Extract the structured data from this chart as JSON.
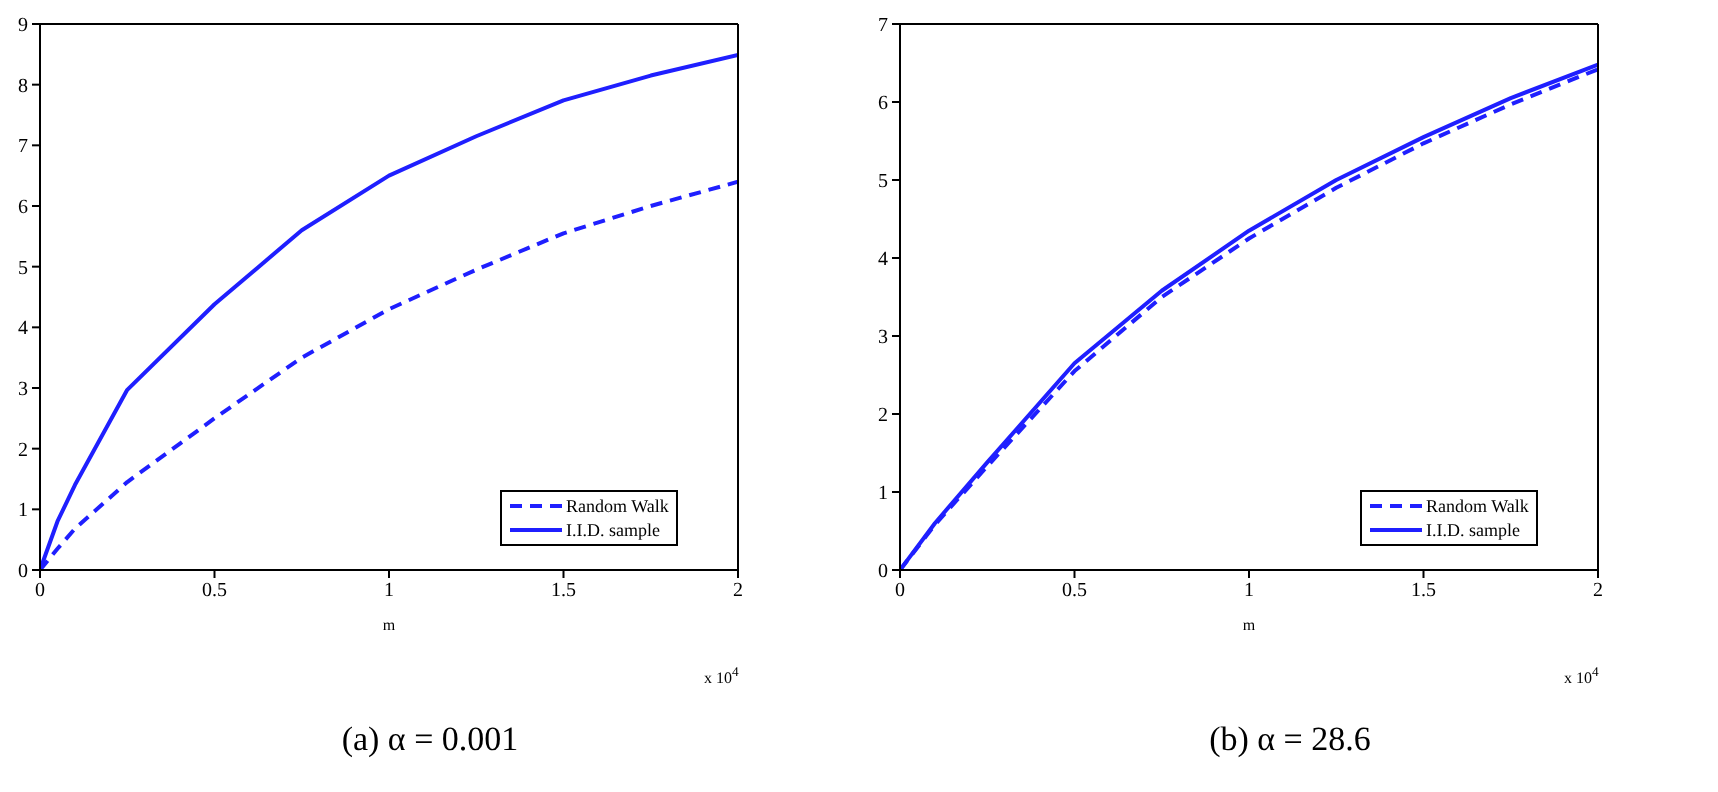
{
  "chart_data": [
    {
      "type": "line",
      "title": "(a) α = 0.001",
      "xlabel": "m",
      "annotations": [
        "x 10$^{4}$"
      ],
      "x": [
        0,
        0.05,
        0.1,
        0.25,
        0.5,
        0.75,
        1,
        1.25,
        1.5,
        1.75,
        2
      ],
      "xlim": [
        0,
        2
      ],
      "xticks": [
        0,
        0.5,
        1,
        1.5,
        2
      ],
      "ylim": [
        0,
        9
      ],
      "yticks": [
        0,
        1,
        2,
        3,
        4,
        5,
        6,
        7,
        8,
        9
      ],
      "grid": false,
      "legend": "bottom right",
      "marker": "none",
      "series": [
        {
          "name": "Random Walk",
          "color": "#1f1fff",
          "line_style": "dashed",
          "values": [
            0,
            0.35,
            0.68,
            1.45,
            2.5,
            3.5,
            4.3,
            4.95,
            5.55,
            6.0,
            6.4
          ]
        },
        {
          "name": "I.I.D. sample",
          "color": "#1f1fff",
          "line_style": "solid",
          "values": [
            0,
            0.8,
            1.4,
            2.97,
            4.38,
            5.6,
            6.5,
            7.15,
            7.74,
            8.15,
            8.49
          ]
        }
      ]
    },
    {
      "type": "line",
      "title": "(b) α = 28.6",
      "xlabel": "m",
      "annotations": [
        "x 10$^{4}$"
      ],
      "x": [
        0,
        0.1,
        0.25,
        0.5,
        0.75,
        1,
        1.25,
        1.5,
        1.75,
        2
      ],
      "xlim": [
        0,
        2
      ],
      "xticks": [
        0,
        0.5,
        1,
        1.5,
        2
      ],
      "ylim": [
        0,
        7
      ],
      "yticks": [
        0,
        1,
        2,
        3,
        4,
        5,
        6,
        7
      ],
      "grid": false,
      "legend": "bottom right",
      "marker": "none",
      "series": [
        {
          "name": "Random Walk",
          "color": "#1f1fff",
          "line_style": "dashed",
          "values": [
            0,
            0.58,
            1.33,
            2.55,
            3.5,
            4.25,
            4.9,
            5.47,
            5.97,
            6.42
          ]
        },
        {
          "name": "I.I.D. sample",
          "color": "#1f1fff",
          "line_style": "solid",
          "values": [
            0,
            0.6,
            1.38,
            2.65,
            3.58,
            4.35,
            5.0,
            5.55,
            6.05,
            6.48
          ]
        }
      ]
    }
  ]
}
